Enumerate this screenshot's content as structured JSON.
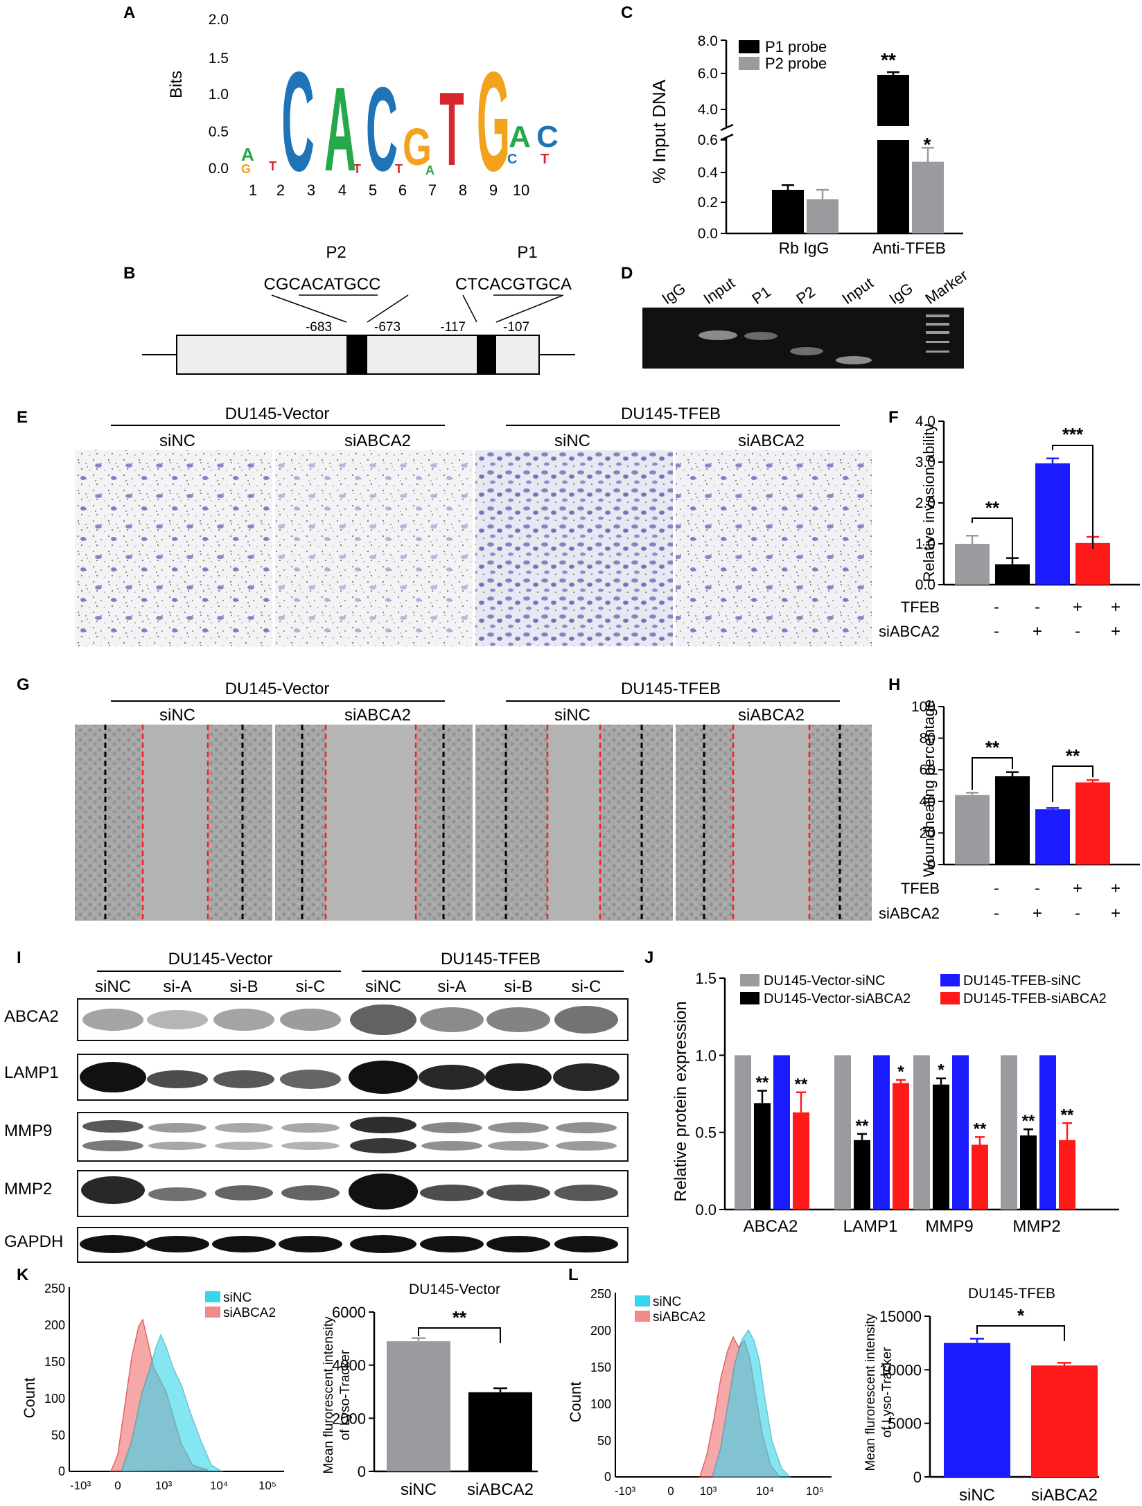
{
  "colors": {
    "gray": "#9b9b9f",
    "black": "#000000",
    "blue": "#1b1bff",
    "red": "#ff1a1a",
    "cyan": "#35d6ec",
    "pink": "#f38a8a",
    "logo_green": "#25a849",
    "logo_blue": "#1f73b7",
    "logo_orange": "#f2a21d",
    "logo_red": "#d8262f"
  },
  "panels": {
    "A": {
      "label": "A",
      "ylabel": "Bits",
      "yticks": [
        "2.0",
        "1.5",
        "1.0",
        "0.5",
        "0.0"
      ],
      "positions": [
        "1",
        "2",
        "3",
        "4",
        "5",
        "6",
        "7",
        "8",
        "9",
        "10"
      ],
      "logo_letters": [
        "C",
        "A",
        "C",
        "G",
        "T",
        "G",
        "A",
        "C"
      ],
      "minor_letters": [
        "A",
        "G",
        "T",
        "C"
      ]
    },
    "B": {
      "label": "B",
      "p2": {
        "name": "P2",
        "seq": "CGCACATGCC",
        "pos_left": "-683",
        "pos_right": "-673"
      },
      "p1": {
        "name": "P1",
        "seq": "CTCACGTGCA",
        "pos_left": "-117",
        "pos_right": "-107"
      }
    },
    "C": {
      "label": "C",
      "ylabel": "% Input DNA",
      "legend": [
        "P1 probe",
        "P2 probe"
      ],
      "yticks_upper": [
        "8.0",
        "6.0",
        "4.0"
      ],
      "yticks_lower": [
        "0.6",
        "0.4",
        "0.2",
        "0.0"
      ],
      "xlabels": [
        "Rb IgG",
        "Anti-TFEB"
      ],
      "sig": [
        "**",
        "*"
      ]
    },
    "D": {
      "label": "D",
      "lanes": [
        "IgG",
        "Input",
        "P1",
        "P2",
        "Input",
        "IgG",
        "Marker"
      ]
    },
    "E": {
      "label": "E",
      "groups": [
        "DU145-Vector",
        "DU145-TFEB"
      ],
      "conditions": [
        "siNC",
        "siABCA2",
        "siNC",
        "siABCA2"
      ]
    },
    "F": {
      "label": "F",
      "ylabel": "Relative invasion ability",
      "yticks": [
        "4.0",
        "3.0",
        "2.0",
        "1.0",
        "0.0"
      ],
      "row1_label": "TFEB",
      "row2_label": "siABCA2",
      "row1": [
        "-",
        "-",
        "+",
        "+"
      ],
      "row2": [
        "-",
        "+",
        "-",
        "+"
      ],
      "sig": [
        "**",
        "***"
      ]
    },
    "G": {
      "label": "G",
      "groups": [
        "DU145-Vector",
        "DU145-TFEB"
      ],
      "conditions": [
        "siNC",
        "siABCA2",
        "siNC",
        "siABCA2"
      ]
    },
    "H": {
      "label": "H",
      "ylabel": "Woundhealing percentage",
      "yticks": [
        "100",
        "80",
        "60",
        "40",
        "20",
        "0"
      ],
      "row1_label": "TFEB",
      "row2_label": "siABCA2",
      "row1": [
        "-",
        "-",
        "+",
        "+"
      ],
      "row2": [
        "-",
        "+",
        "-",
        "+"
      ],
      "sig": [
        "**",
        "**"
      ]
    },
    "I": {
      "label": "I",
      "groups": [
        "DU145-Vector",
        "DU145-TFEB"
      ],
      "lanes": [
        "siNC",
        "si-A",
        "si-B",
        "si-C",
        "siNC",
        "si-A",
        "si-B",
        "si-C"
      ],
      "proteins": [
        "ABCA2",
        "LAMP1",
        "MMP9",
        "MMP2",
        "GAPDH"
      ]
    },
    "J": {
      "label": "J",
      "ylabel": "Relative protein expression",
      "yticks": [
        "1.5",
        "1.0",
        "0.5",
        "0.0"
      ],
      "legend": [
        "DU145-Vector-siNC",
        "DU145-Vector-siABCA2",
        "DU145-TFEB-siNC",
        "DU145-TFEB-siABCA2"
      ]
    },
    "K": {
      "label": "K",
      "title": "DU145-Vector",
      "legend": [
        "siNC",
        "siABCA2"
      ],
      "hist_ylabel": "Count",
      "hist_yticks": [
        "250",
        "200",
        "150",
        "100",
        "50",
        "0"
      ],
      "hist_xticks": [
        "-10³",
        "0",
        "10³",
        "10⁴",
        "10⁵"
      ],
      "bar_ylabel_1": "Mean flurorescent intensity",
      "bar_ylabel_2": "of Lyso-Tracker",
      "bar_yticks": [
        "6000",
        "4000",
        "2000",
        "0"
      ],
      "bar_xlabels": [
        "siNC",
        "siABCA2"
      ],
      "sig": "**"
    },
    "L": {
      "label": "L",
      "title": "DU145-TFEB",
      "legend": [
        "siNC",
        "siABCA2"
      ],
      "hist_ylabel": "Count",
      "hist_yticks": [
        "250",
        "200",
        "150",
        "100",
        "50",
        "0"
      ],
      "hist_xticks": [
        "-10³",
        "0",
        "10³",
        "10⁴",
        "10⁵"
      ],
      "bar_ylabel_1": "Mean flurorescent intensity",
      "bar_ylabel_2": "of Lyso-Tracker",
      "bar_yticks": [
        "15000",
        "10000",
        "5000",
        "0"
      ],
      "bar_xlabels": [
        "siNC",
        "siABCA2"
      ],
      "sig": "*"
    }
  },
  "chart_data": [
    {
      "panel": "C",
      "type": "bar",
      "categories": [
        "Rb IgG",
        "Anti-TFEB"
      ],
      "series": [
        {
          "name": "P1 probe",
          "values": [
            0.28,
            6.0
          ],
          "errors": [
            0.03,
            0.15
          ]
        },
        {
          "name": "P2 probe",
          "values": [
            0.22,
            0.46
          ],
          "errors": [
            0.06,
            0.09
          ]
        }
      ],
      "ylabel": "% Input DNA",
      "ylim": [
        0,
        8.0
      ],
      "axis_break": [
        0.6,
        4.0
      ]
    },
    {
      "panel": "F",
      "type": "bar",
      "categories": [
        "DU145-Vector siNC",
        "DU145-Vector siABCA2",
        "DU145-TFEB siNC",
        "DU145-TFEB siABCA2"
      ],
      "values": [
        1.0,
        0.5,
        2.97,
        1.02
      ],
      "errors": [
        0.2,
        0.15,
        0.12,
        0.15
      ],
      "ylabel": "Relative invasion ability",
      "ylim": [
        0,
        4.0
      ]
    },
    {
      "panel": "H",
      "type": "bar",
      "categories": [
        "DU145-Vector siNC",
        "DU145-Vector siABCA2",
        "DU145-TFEB siNC",
        "DU145-TFEB siABCA2"
      ],
      "values": [
        44,
        56,
        35,
        52
      ],
      "errors": [
        1.5,
        2.5,
        0.8,
        1.5
      ],
      "ylabel": "Woundhealing percentage",
      "ylim": [
        0,
        100
      ]
    },
    {
      "panel": "J",
      "type": "bar",
      "categories": [
        "ABCA2",
        "LAMP1",
        "MMP9",
        "MMP2"
      ],
      "series": [
        {
          "name": "DU145-Vector-siNC",
          "values": [
            1.0,
            1.0,
            1.0,
            1.0
          ],
          "errors": [
            0,
            0,
            0,
            0
          ]
        },
        {
          "name": "DU145-Vector-siABCA2",
          "values": [
            0.69,
            0.45,
            0.81,
            0.48
          ],
          "errors": [
            0.08,
            0.04,
            0.04,
            0.04
          ]
        },
        {
          "name": "DU145-TFEB-siNC",
          "values": [
            1.0,
            1.0,
            1.0,
            1.0
          ],
          "errors": [
            0,
            0,
            0,
            0
          ]
        },
        {
          "name": "DU145-TFEB-siABCA2",
          "values": [
            0.63,
            0.82,
            0.42,
            0.45
          ],
          "errors": [
            0.13,
            0.02,
            0.05,
            0.11
          ]
        }
      ],
      "sig": [
        [
          "",
          "**",
          "",
          "**"
        ],
        [
          "",
          "**",
          "",
          "*"
        ],
        [
          "",
          "*",
          "",
          "**"
        ],
        [
          "",
          "**",
          "",
          "**"
        ]
      ],
      "ylabel": "Relative protein expression",
      "ylim": [
        0,
        1.5
      ]
    },
    {
      "panel": "K",
      "type": "bar",
      "categories": [
        "siNC",
        "siABCA2"
      ],
      "values": [
        4900,
        2980
      ],
      "errors": [
        120,
        150
      ],
      "title": "DU145-Vector",
      "ylabel": "Mean flurorescent intensity of Lyso-Tracker",
      "ylim": [
        0,
        6000
      ]
    },
    {
      "panel": "L",
      "type": "bar",
      "categories": [
        "siNC",
        "siABCA2"
      ],
      "values": [
        12500,
        10400
      ],
      "errors": [
        400,
        250
      ],
      "title": "DU145-TFEB",
      "ylabel": "Mean flurorescent intensity of Lyso-Tracker",
      "ylim": [
        0,
        15000
      ]
    }
  ]
}
